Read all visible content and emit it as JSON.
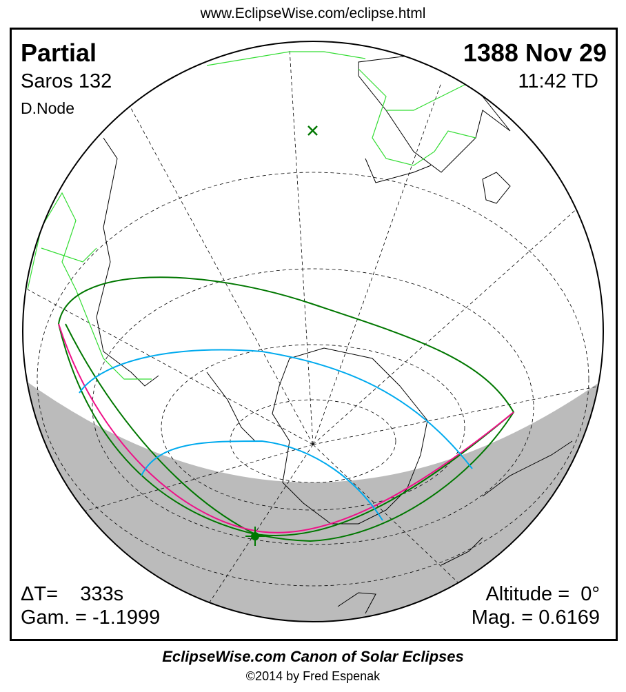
{
  "header": {
    "url": "www.EclipseWise.com/eclipse.html"
  },
  "eclipse": {
    "type": "Partial",
    "saros": "Saros 132",
    "node": "D.Node",
    "date": "1388 Nov 29",
    "time": "11:42 TD",
    "delta_t": "ΔT=    333s",
    "gamma": "Gam. = -1.1999",
    "altitude": "Altitude =  0°",
    "magnitude": "Mag. = 0.6169"
  },
  "colors": {
    "land": "#33dd33",
    "penumbra": "#007700",
    "magnitude_lines": "#00aaee",
    "max_line": "#ee1188",
    "night": "#bbbbbb"
  },
  "footer": {
    "title": "EclipseWise.com Canon of Solar Eclipses",
    "copyright": "©2014 by Fred Espenak"
  }
}
